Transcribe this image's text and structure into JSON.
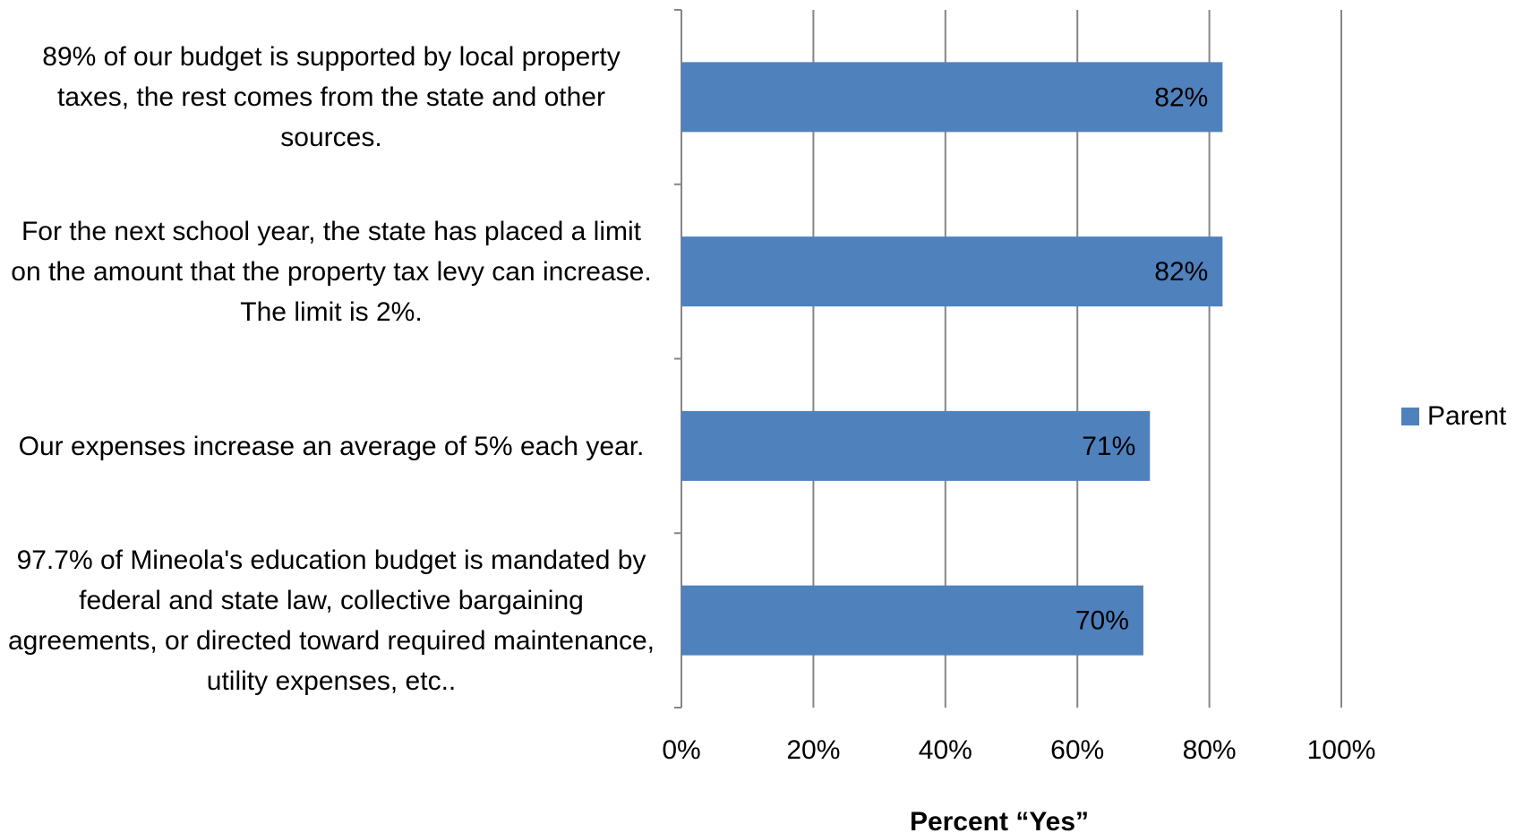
{
  "chart_data": {
    "type": "bar",
    "orientation": "horizontal",
    "categories": [
      "89% of our budget is supported by local property taxes, the rest comes from the state and other sources.",
      "For the next school year, the state has placed a limit on the amount that the property tax levy can increase. The limit is 2%.",
      "Our expenses increase an average of 5% each year.",
      "97.7% of Mineola's education budget is mandated by federal and state law, collective bargaining agreements, or directed toward required maintenance, utility expenses, etc.."
    ],
    "series": [
      {
        "name": "Parent",
        "color": "#4f81bd",
        "values": [
          82,
          82,
          71,
          70
        ],
        "value_labels": [
          "82%",
          "82%",
          "71%",
          "70%"
        ]
      }
    ],
    "xlim": [
      0,
      100
    ],
    "xticks": [
      {
        "value": 0,
        "label": "0%"
      },
      {
        "value": 20,
        "label": "20%"
      },
      {
        "value": 40,
        "label": "40%"
      },
      {
        "value": 60,
        "label": "60%"
      },
      {
        "value": 80,
        "label": "80%"
      },
      {
        "value": 100,
        "label": "100%"
      }
    ],
    "xlabel": "Percent “Yes”",
    "grid": true,
    "legend": "right"
  }
}
